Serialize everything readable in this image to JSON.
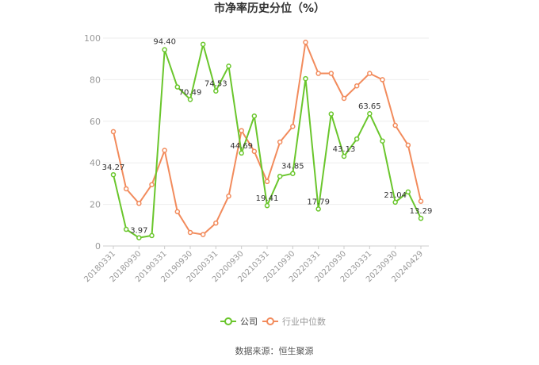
{
  "colors": {
    "company": "#6ac62c",
    "industry": "#f28b5c",
    "grid": "#eeeeee",
    "axis": "#cccccc"
  },
  "chart_data": {
    "type": "line",
    "title": "市净率历史分位（%）",
    "ylim": [
      0,
      100
    ],
    "yticks": [
      0,
      20,
      40,
      60,
      80,
      100
    ],
    "grid": true,
    "legend_position": "bottom-center",
    "x_tick_labels": [
      "20180331",
      "20180930",
      "20190331",
      "20190930",
      "20200331",
      "20200930",
      "20210331",
      "20210930",
      "20220331",
      "20220930",
      "20230331",
      "20230930",
      "20240429"
    ],
    "x": [
      "20180331",
      "20180630",
      "20180930",
      "20181231",
      "20190331",
      "20190630",
      "20190930",
      "20191231",
      "20200331",
      "20200630",
      "20200930",
      "20201231",
      "20210331",
      "20210630",
      "20210930",
      "20211231",
      "20220331",
      "20220630",
      "20220930",
      "20221231",
      "20230331",
      "20230630",
      "20230930",
      "20231231",
      "20240429"
    ],
    "series": [
      {
        "name": "公司",
        "values": [
          34.27,
          8.0,
          3.97,
          5.0,
          94.4,
          76.5,
          70.49,
          97.0,
          74.53,
          86.5,
          44.69,
          62.5,
          19.41,
          33.5,
          34.85,
          80.5,
          17.79,
          63.5,
          43.13,
          51.5,
          63.65,
          50.5,
          21.04,
          26.0,
          13.29
        ],
        "labels": {
          "0": "34.27",
          "2": "3.97",
          "4": "94.40",
          "6": "70.49",
          "8": "74.53",
          "10": "44.69",
          "12": "19.41",
          "14": "34.85",
          "16": "17.79",
          "18": "43.13",
          "20": "63.65",
          "22": "21.04",
          "24": "13.29"
        }
      },
      {
        "name": "行业中位数",
        "values": [
          55.0,
          27.5,
          20.5,
          29.5,
          46.0,
          16.5,
          6.5,
          5.5,
          11.0,
          24.0,
          55.5,
          45.5,
          31.0,
          50.0,
          57.5,
          98.0,
          83.0,
          83.0,
          71.0,
          77.0,
          83.0,
          80.0,
          58.0,
          48.5,
          21.5
        ]
      }
    ],
    "source": "数据来源：恒生聚源"
  }
}
